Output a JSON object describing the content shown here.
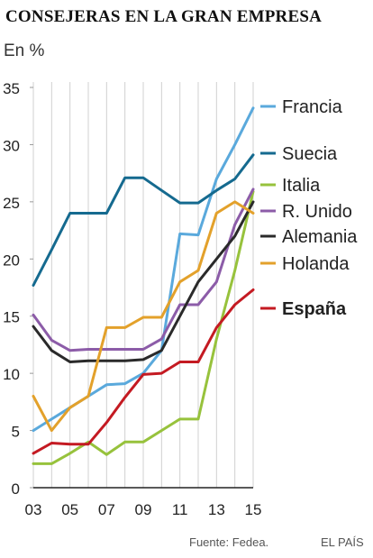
{
  "title": "CONSEJERAS EN LA GRAN EMPRESA",
  "unit": "En %",
  "source": "Fuente: Fedea.",
  "brand": "EL PAÍS",
  "chart_data": {
    "type": "line",
    "x": [
      2003,
      2004,
      2005,
      2006,
      2007,
      2008,
      2009,
      2010,
      2011,
      2012,
      2013,
      2014,
      2015
    ],
    "x_tick_labels": [
      "03",
      "05",
      "07",
      "09",
      "11",
      "13",
      "15"
    ],
    "x_tick_years": [
      2003,
      2005,
      2007,
      2009,
      2011,
      2013,
      2015
    ],
    "ylim": [
      0,
      35
    ],
    "y_ticks": [
      0,
      5,
      10,
      15,
      20,
      25,
      30,
      35
    ],
    "grid": "vertical lines at each year",
    "legend_placement": "right",
    "series": [
      {
        "name": "Francia",
        "color": "#5aa9dc",
        "bold": false,
        "values": [
          5.0,
          6.0,
          7.0,
          8.0,
          9.0,
          9.1,
          10.0,
          12.0,
          22.2,
          22.1,
          27.0,
          30.0,
          33.2
        ]
      },
      {
        "name": "Suecia",
        "color": "#156a8f",
        "bold": false,
        "values": [
          17.7,
          20.8,
          24.0,
          24.0,
          24.0,
          27.1,
          27.1,
          26.0,
          24.9,
          24.9,
          26.0,
          27.0,
          29.1
        ]
      },
      {
        "name": "Italia",
        "color": "#97c23c",
        "bold": false,
        "values": [
          2.1,
          2.1,
          3.0,
          4.0,
          2.9,
          4.0,
          4.0,
          5.0,
          6.0,
          6.0,
          13.0,
          19.0,
          25.9
        ]
      },
      {
        "name": "R. Unido",
        "color": "#8c5ca8",
        "bold": false,
        "values": [
          15.1,
          12.9,
          12.0,
          12.1,
          12.1,
          12.1,
          12.1,
          13.0,
          16.0,
          16.0,
          18.0,
          23.0,
          26.1
        ]
      },
      {
        "name": "Alemania",
        "color": "#2a2a2a",
        "bold": false,
        "values": [
          14.1,
          12.0,
          11.0,
          11.1,
          11.1,
          11.1,
          11.2,
          12.0,
          15.0,
          18.0,
          20.0,
          22.0,
          25.0
        ]
      },
      {
        "name": "Holanda",
        "color": "#e3a12b",
        "bold": false,
        "values": [
          8.0,
          5.0,
          7.0,
          8.0,
          14.0,
          14.0,
          14.9,
          14.9,
          18.0,
          19.0,
          24.0,
          25.0,
          24.0
        ]
      },
      {
        "name": "España",
        "color": "#c41a22",
        "bold": true,
        "values": [
          3.0,
          3.9,
          3.8,
          3.8,
          5.7,
          7.9,
          9.9,
          10.0,
          11.0,
          11.0,
          14.0,
          16.0,
          17.3
        ]
      }
    ]
  }
}
